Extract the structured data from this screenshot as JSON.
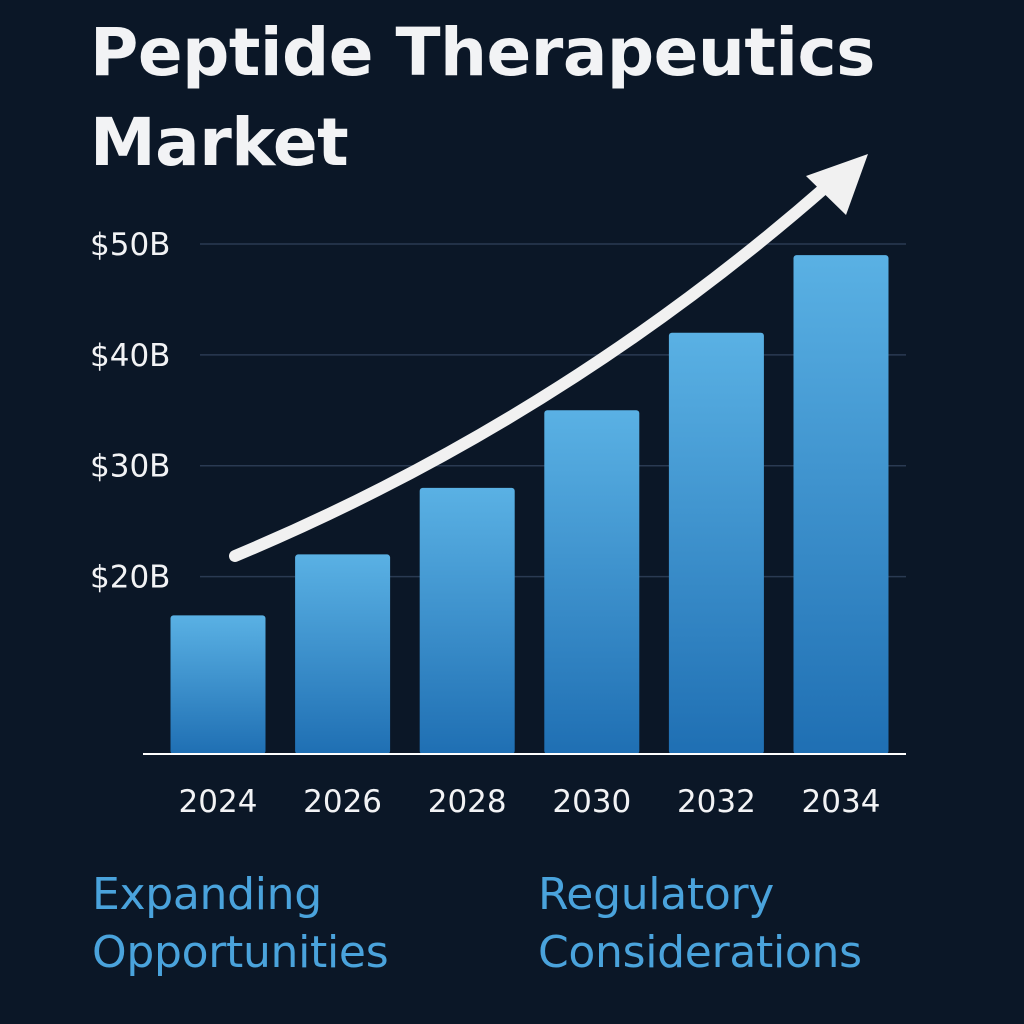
{
  "title_line1": "Peptide Therapeutics",
  "title_line2": "Market",
  "chart_data": {
    "type": "bar",
    "categories": [
      "2024",
      "2026",
      "2028",
      "2030",
      "2032",
      "2034"
    ],
    "values": [
      16.5,
      22,
      28,
      35,
      42,
      49
    ],
    "y_unit": "$B",
    "y_ticks": [
      {
        "value": 20,
        "label": "$20B"
      },
      {
        "value": 30,
        "label": "$30B"
      },
      {
        "value": 40,
        "label": "$40B"
      },
      {
        "value": 50,
        "label": "$50B"
      }
    ],
    "ylim": [
      4,
      50
    ],
    "grid": true,
    "annotation": "upward trend arrow",
    "colors": {
      "bar_top": "#5ab1e4",
      "bar_bottom": "#1f6fb3",
      "grid": "#2a3a52",
      "axis": "#ffffff",
      "arrow": "#f1f1f1"
    }
  },
  "footer": {
    "left": {
      "line1": "Expanding",
      "line2": "Opportunities"
    },
    "right": {
      "line1": "Regulatory",
      "line2": "Considerations"
    }
  },
  "colors": {
    "background": "#0b1727",
    "title": "#f2f3f5",
    "accent": "#4aa3dc"
  }
}
